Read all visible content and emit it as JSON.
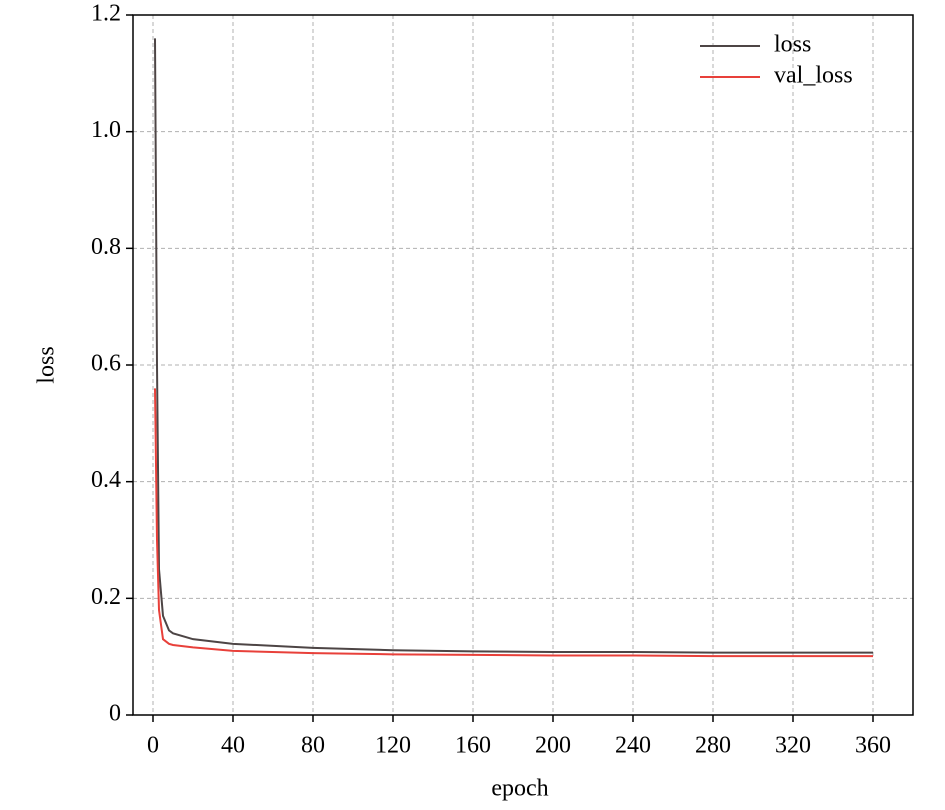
{
  "chart_data": {
    "type": "line",
    "xlabel": "epoch",
    "ylabel": "loss",
    "x": [
      1,
      2,
      3,
      5,
      8,
      10,
      20,
      40,
      80,
      120,
      160,
      200,
      240,
      280,
      320,
      360
    ],
    "series": [
      {
        "name": "loss",
        "color": "#4d4545",
        "values": [
          1.16,
          0.6,
          0.25,
          0.17,
          0.145,
          0.14,
          0.13,
          0.122,
          0.115,
          0.111,
          0.109,
          0.108,
          0.108,
          0.107,
          0.107,
          0.107
        ]
      },
      {
        "name": "val_loss",
        "color": "#e8403a",
        "values": [
          0.56,
          0.3,
          0.18,
          0.13,
          0.122,
          0.12,
          0.116,
          0.11,
          0.106,
          0.104,
          0.103,
          0.102,
          0.102,
          0.101,
          0.101,
          0.101
        ]
      }
    ],
    "xlim": [
      -10,
      380
    ],
    "ylim": [
      0,
      1.2
    ],
    "xticks": [
      0,
      40,
      80,
      120,
      160,
      200,
      240,
      280,
      320,
      360
    ],
    "yticks": [
      0,
      0.2,
      0.4,
      0.6,
      0.8,
      {
        "value": 1,
        "label": "1.0"
      },
      1.2
    ],
    "grid": true,
    "legend": "upper right"
  }
}
